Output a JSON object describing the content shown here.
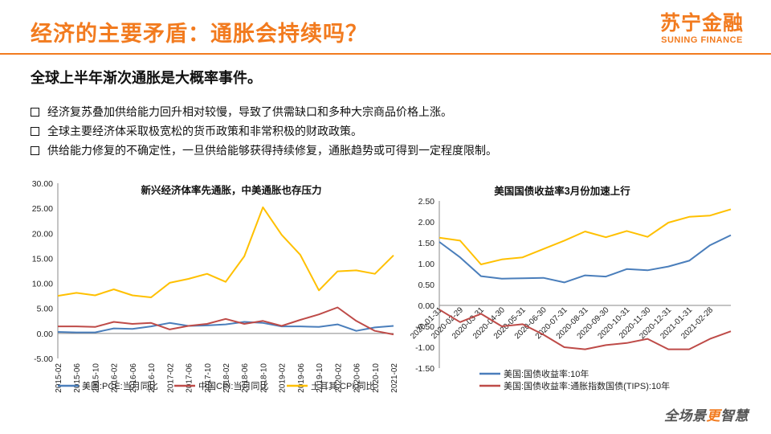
{
  "header": {
    "title": "经济的主要矛盾：通胀会持续吗？",
    "logo_cn": "苏宁金融",
    "logo_en": "SUNING FINANCE"
  },
  "subtitle": "全球上半年渐次通胀是大概率事件。",
  "bullets": [
    "经济复苏叠加供给能力回升相对较慢，导致了供需缺口和多种大宗商品价格上涨。",
    "全球主要经济体采取极宽松的货币政策和非常积极的财政政策。",
    "供给能力修复的不确定性，一旦供给能够获得持续修复，通胀趋势或可得到一定程度限制。"
  ],
  "footer": {
    "part1": "全场景",
    "part2": "更",
    "part3": "智慧"
  },
  "colors": {
    "accent": "#f27b1f",
    "blue": "#4a7ebb",
    "red": "#be4b48",
    "yellow": "#ffc000"
  },
  "chart_data": [
    {
      "type": "line",
      "title": "新兴经济体率先通胀，中美通胀也存压力",
      "ylim": [
        -5,
        30
      ],
      "yticks": [
        "-5.00",
        "0.00",
        "5.00",
        "10.00",
        "15.00",
        "20.00",
        "25.00",
        "30.00"
      ],
      "x": [
        "2015-02",
        "2015-06",
        "2015-10",
        "2016-02",
        "2016-06",
        "2016-10",
        "2017-02",
        "2017-06",
        "2017-10",
        "2018-02",
        "2018-06",
        "2018-10",
        "2019-02",
        "2019-06",
        "2019-10",
        "2020-02",
        "2020-06",
        "2020-10",
        "2021-02"
      ],
      "series": [
        {
          "name": "美国:PCE:当月同比",
          "color": "#4a7ebb",
          "values": [
            0.3,
            0.2,
            0.2,
            1.0,
            0.9,
            1.4,
            2.1,
            1.5,
            1.6,
            1.8,
            2.3,
            2.1,
            1.4,
            1.4,
            1.3,
            1.8,
            0.5,
            1.2,
            1.5
          ]
        },
        {
          "name": "中国CPI:当月同比",
          "color": "#be4b48",
          "values": [
            1.4,
            1.4,
            1.3,
            2.3,
            1.9,
            2.1,
            0.8,
            1.5,
            1.9,
            2.9,
            1.9,
            2.5,
            1.5,
            2.7,
            3.8,
            5.2,
            2.5,
            0.5,
            -0.2
          ]
        },
        {
          "name": "土耳其:CPI:同比",
          "color": "#ffc000",
          "values": [
            7.5,
            8.1,
            7.6,
            8.8,
            7.6,
            7.2,
            10.1,
            10.9,
            11.9,
            10.3,
            15.4,
            25.2,
            19.7,
            15.7,
            8.6,
            12.4,
            12.6,
            11.9,
            15.6
          ]
        }
      ],
      "legend_position": "bottom"
    },
    {
      "type": "line",
      "title": "美国国债收益率3月份加速上行",
      "ylim": [
        -1.5,
        2.5
      ],
      "yticks": [
        "-1.50",
        "-1.00",
        "-0.50",
        "0.00",
        "0.50",
        "1.00",
        "1.50",
        "2.00",
        "2.50"
      ],
      "x": [
        "2020-01-31",
        "2020-02-29",
        "2020-03-31",
        "2020-04-30",
        "2020-05-31",
        "2020-06-30",
        "2020-07-31",
        "2020-08-31",
        "2020-09-30",
        "2020-10-31",
        "2020-11-30",
        "2020-12-31",
        "2021-01-31",
        "2021-02-28",
        "2021-03-26"
      ],
      "x_labels": [
        "2020-01-31",
        "2020-02-29",
        "2020-03-31",
        "2020-04-30",
        "2020-05-31",
        "2020-06-30",
        "2020-07-31",
        "2020-08-31",
        "2020-09-30",
        "2020-10-31",
        "2020-11-30",
        "2020-12-31",
        "2021-01-31",
        "2021-02-28"
      ],
      "series": [
        {
          "name": "美国:国债收益率:10年",
          "color": "#4a7ebb",
          "values": [
            1.52,
            1.15,
            0.7,
            0.64,
            0.65,
            0.66,
            0.55,
            0.72,
            0.69,
            0.87,
            0.84,
            0.93,
            1.07,
            1.44,
            1.68
          ]
        },
        {
          "name": "美国:国债收益率:通胀指数国债(TIPS):10年",
          "color": "#be4b48",
          "values": [
            -0.1,
            -0.4,
            -0.2,
            -0.5,
            -0.45,
            -0.7,
            -1.0,
            -1.05,
            -0.95,
            -0.9,
            -0.8,
            -1.05,
            -1.05,
            -0.8,
            -0.62
          ]
        },
        {
          "name": "",
          "color": "#ffc000",
          "values": [
            1.62,
            1.55,
            0.98,
            1.1,
            1.15,
            1.35,
            1.55,
            1.77,
            1.63,
            1.78,
            1.64,
            1.98,
            2.12,
            2.15,
            2.3
          ]
        }
      ],
      "legend_position": "bottom"
    }
  ]
}
